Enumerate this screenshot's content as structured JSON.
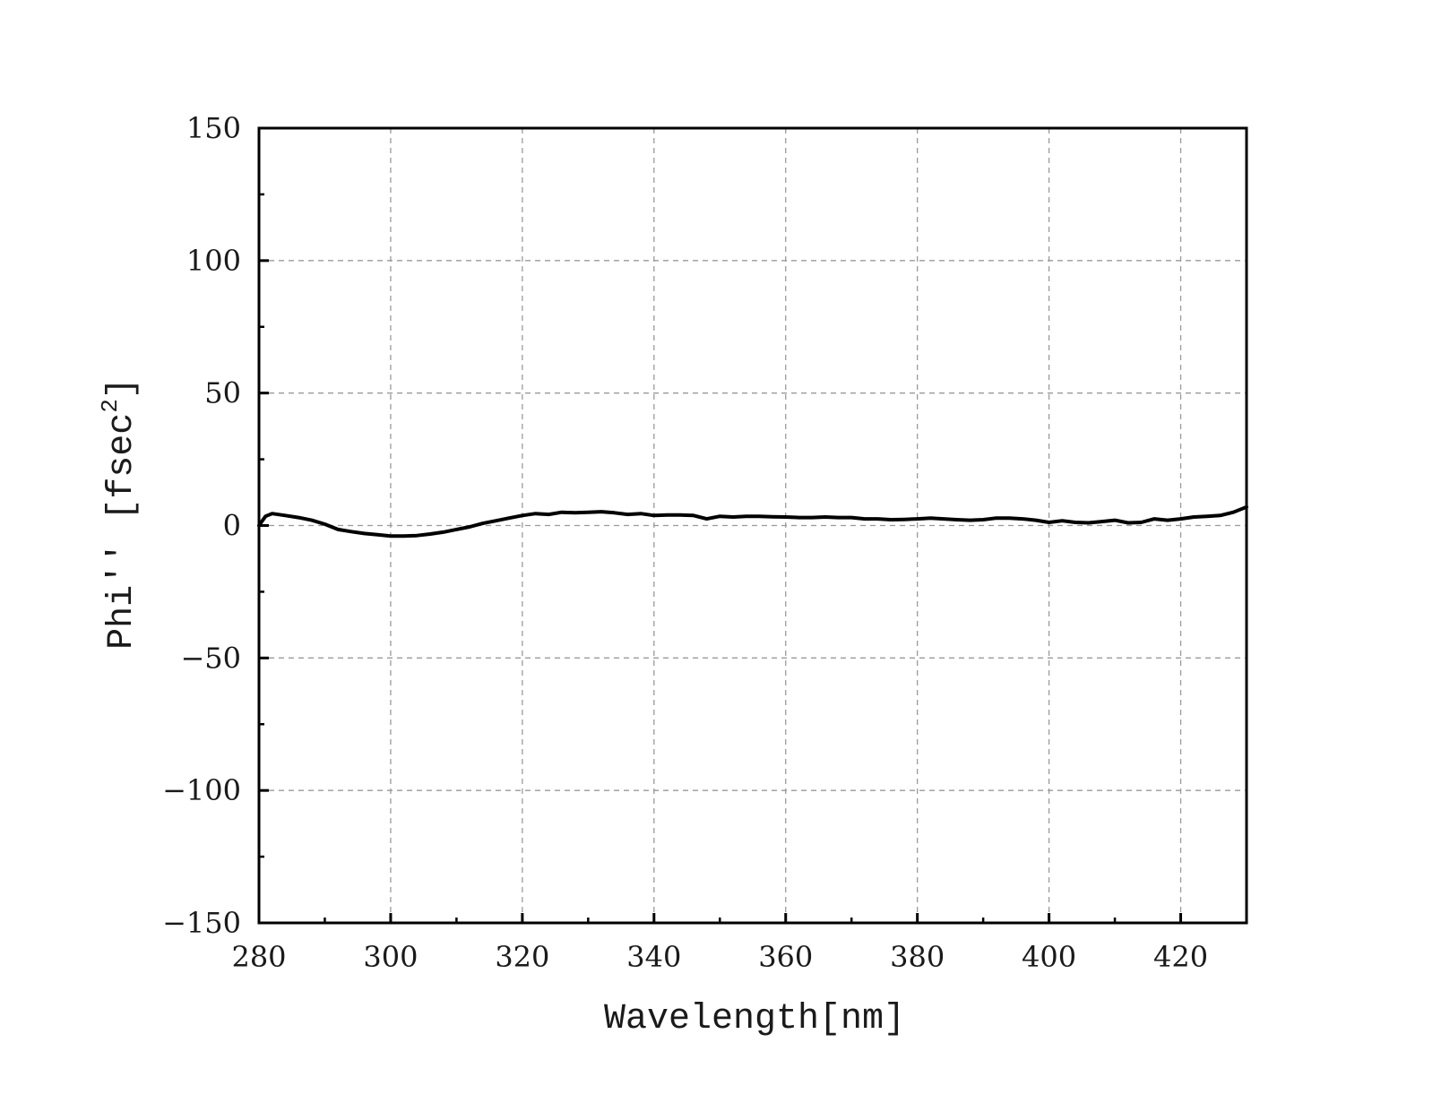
{
  "chart_data": {
    "type": "line",
    "xlabel": "Wavelength[nm]",
    "ylabel_main": "Phi'' [fsec",
    "ylabel_sup": "2",
    "ylabel_end": "]",
    "xlim": [
      280,
      430
    ],
    "ylim": [
      -150,
      150
    ],
    "xticks": [
      280,
      300,
      320,
      340,
      360,
      380,
      400,
      420
    ],
    "yticks": [
      -150,
      -100,
      -50,
      0,
      50,
      100,
      150
    ],
    "xtick_labels": [
      "280",
      "300",
      "320",
      "340",
      "360",
      "380",
      "400",
      "420"
    ],
    "ytick_labels": [
      "−150",
      "−100",
      "−50",
      "0",
      "50",
      "100",
      "150"
    ],
    "x_minor_step": 10,
    "y_minor_step": 25,
    "grid": true,
    "legend": "none",
    "colors": {
      "line": "#000000",
      "grid": "#9a9a9a",
      "frame": "#000000"
    },
    "series": [
      {
        "x": [
          280,
          281,
          282,
          284,
          286,
          288,
          290,
          292,
          294,
          296,
          298,
          300,
          302,
          304,
          306,
          308,
          310,
          312,
          314,
          316,
          318,
          320,
          322,
          324,
          326,
          328,
          330,
          332,
          334,
          336,
          338,
          340,
          342,
          344,
          346,
          348,
          350,
          352,
          354,
          356,
          358,
          360,
          362,
          364,
          366,
          368,
          370,
          372,
          374,
          376,
          378,
          380,
          382,
          384,
          386,
          388,
          390,
          392,
          394,
          396,
          398,
          400,
          402,
          404,
          406,
          408,
          410,
          412,
          414,
          416,
          418,
          420,
          422,
          424,
          426,
          428,
          430
        ],
        "y": [
          0,
          3.5,
          4.5,
          3.8,
          3.0,
          2.0,
          0.5,
          -1.5,
          -2.3,
          -3.0,
          -3.5,
          -4.0,
          -4.0,
          -3.8,
          -3.2,
          -2.5,
          -1.5,
          -0.5,
          0.8,
          1.8,
          2.8,
          3.8,
          4.5,
          4.2,
          5.0,
          4.8,
          5.0,
          5.2,
          4.8,
          4.2,
          4.5,
          3.8,
          4.0,
          4.0,
          3.8,
          2.5,
          3.5,
          3.2,
          3.5,
          3.5,
          3.3,
          3.2,
          3.0,
          3.0,
          3.2,
          3.0,
          3.0,
          2.5,
          2.5,
          2.2,
          2.3,
          2.5,
          2.8,
          2.5,
          2.2,
          2.0,
          2.2,
          2.8,
          2.8,
          2.5,
          2.0,
          1.2,
          1.8,
          1.2,
          1.0,
          1.5,
          2.0,
          1.0,
          1.2,
          2.5,
          2.0,
          2.5,
          3.2,
          3.5,
          3.8,
          5.0,
          7.0
        ]
      }
    ]
  }
}
